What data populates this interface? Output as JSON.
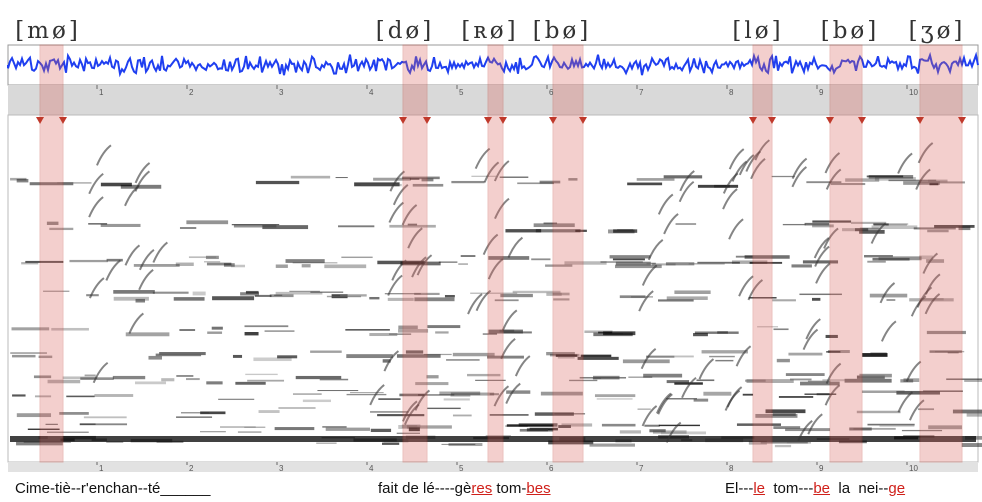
{
  "phoneme_labels": [
    "[mø]",
    "[dø]",
    "[ʀø]",
    "[bø]",
    "[lø]",
    "[bø]",
    "[ʒø]"
  ],
  "time_ticks": [
    1,
    2,
    3,
    4,
    5,
    6,
    7,
    8,
    9,
    10
  ],
  "lyrics": [
    [
      {
        "text": "Cime-tiè--r'enchan--té______",
        "highlight": false
      }
    ],
    [
      {
        "text": "fait de lé----gè",
        "highlight": false
      },
      {
        "text": "res",
        "highlight": true
      },
      {
        "text": " tom-",
        "highlight": false
      },
      {
        "text": "bes",
        "highlight": true
      }
    ],
    [
      {
        "text": "El---",
        "highlight": false
      },
      {
        "text": "le",
        "highlight": true
      },
      {
        "text": "  tom---",
        "highlight": false
      },
      {
        "text": "be",
        "highlight": true
      },
      {
        "text": "  la  nei--",
        "highlight": false
      },
      {
        "text": "ge",
        "highlight": true
      }
    ]
  ]
}
